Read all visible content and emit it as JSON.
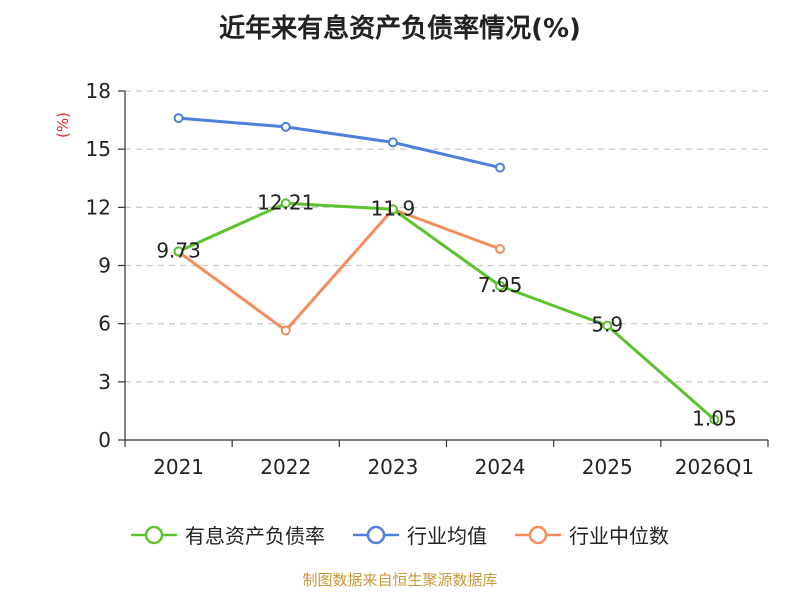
{
  "chart_data": {
    "type": "line",
    "title": "近年来有息资产负债率情况(%)",
    "ylabel": "(%)",
    "categories": [
      "2021",
      "2022",
      "2023",
      "2024",
      "2025",
      "2026Q1"
    ],
    "ylim": [
      0,
      18
    ],
    "yticks": [
      0,
      3,
      6,
      9,
      12,
      15,
      18
    ],
    "grid": true,
    "legend_position": "bottom",
    "series": [
      {
        "name": "有息资产负债率",
        "color": "#5cc22f",
        "values": [
          9.73,
          12.21,
          11.9,
          7.95,
          5.9,
          1.05
        ],
        "labels": [
          "9.73",
          "12.21",
          "11.9",
          "7.95",
          "5.9",
          "1.05"
        ]
      },
      {
        "name": "行业均值",
        "color": "#4f7fdc",
        "values": [
          16.6,
          16.15,
          15.35,
          14.05,
          null,
          null
        ]
      },
      {
        "name": "行业中位数",
        "color": "#f48c5c",
        "values": [
          9.7,
          5.65,
          11.9,
          9.85,
          null,
          null
        ]
      }
    ]
  },
  "source": "制图数据来自恒生聚源数据库"
}
